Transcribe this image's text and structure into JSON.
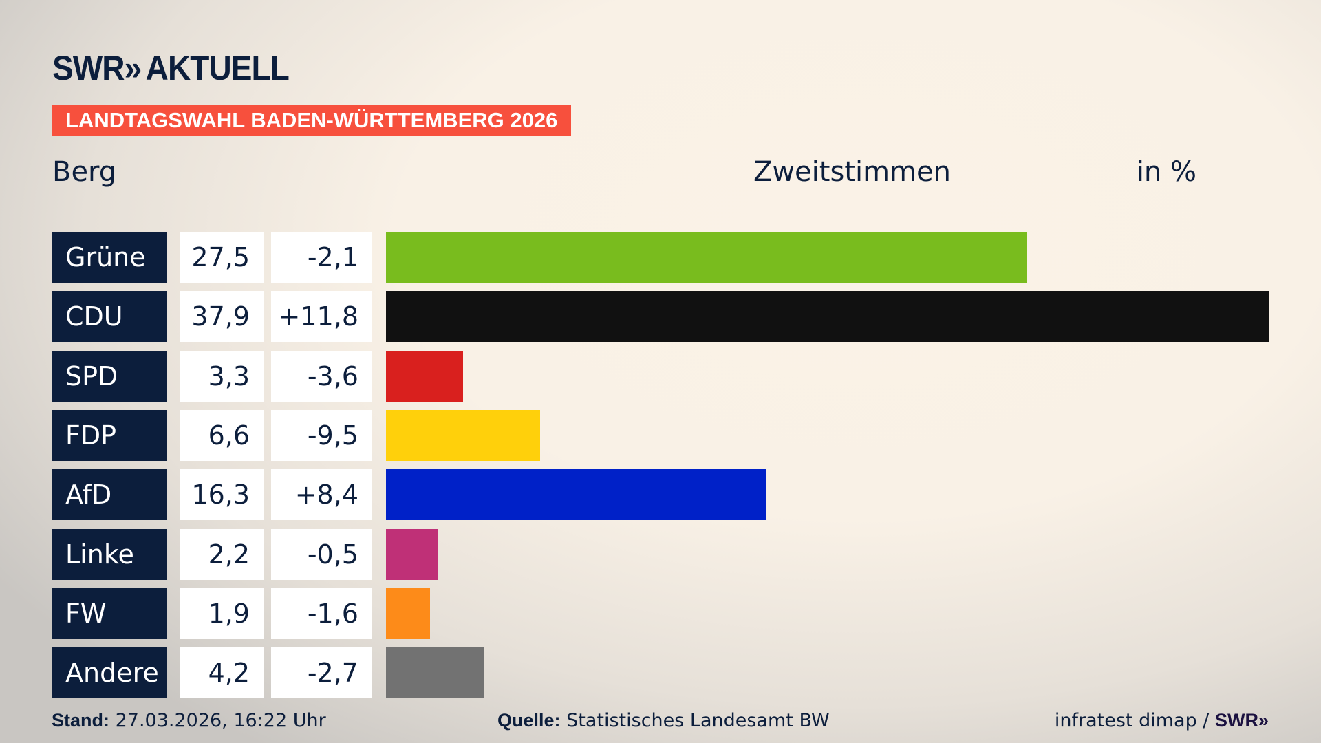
{
  "header": {
    "logo": "SWR AKTUELL",
    "logo_brand": "SWR",
    "logo_chevrons": "»",
    "logo_word": "AKTUELL",
    "banner": "LANDTAGSWAHL BADEN-WÜRTTEMBERG 2026",
    "place": "Berg",
    "metric": "Zweitstimmen",
    "unit": "in %"
  },
  "chart_data": {
    "type": "bar",
    "orientation": "horizontal",
    "categories": [
      "Grüne",
      "CDU",
      "SPD",
      "FDP",
      "AfD",
      "Linke",
      "FW",
      "Andere"
    ],
    "values": [
      27.5,
      37.9,
      3.3,
      6.6,
      16.3,
      2.2,
      1.9,
      4.2
    ],
    "value_labels": [
      "27,5",
      "37,9",
      "3,3",
      "6,6",
      "16,3",
      "2,2",
      "1,9",
      "4,2"
    ],
    "diff_labels": [
      "-2,1",
      "+11,8",
      "-3,6",
      "-9,5",
      "+8,4",
      "-0,5",
      "-1,6",
      "-2,7"
    ],
    "colors": [
      "#79bc1e",
      "#111111",
      "#d9201e",
      "#ffd00b",
      "#0021c8",
      "#bf3077",
      "#fd8b19",
      "#727272"
    ],
    "xlim": [
      0,
      37.9
    ],
    "grid": false,
    "legend": "none"
  },
  "footer": {
    "stand_label": "Stand:",
    "stand_value": " 27.03.2026, 16:22 Uhr",
    "source_label": "Quelle:",
    "source_value": " Statistisches Landesamt BW",
    "credit": "infratest dimap / ",
    "credit_brand": "SWR»"
  }
}
